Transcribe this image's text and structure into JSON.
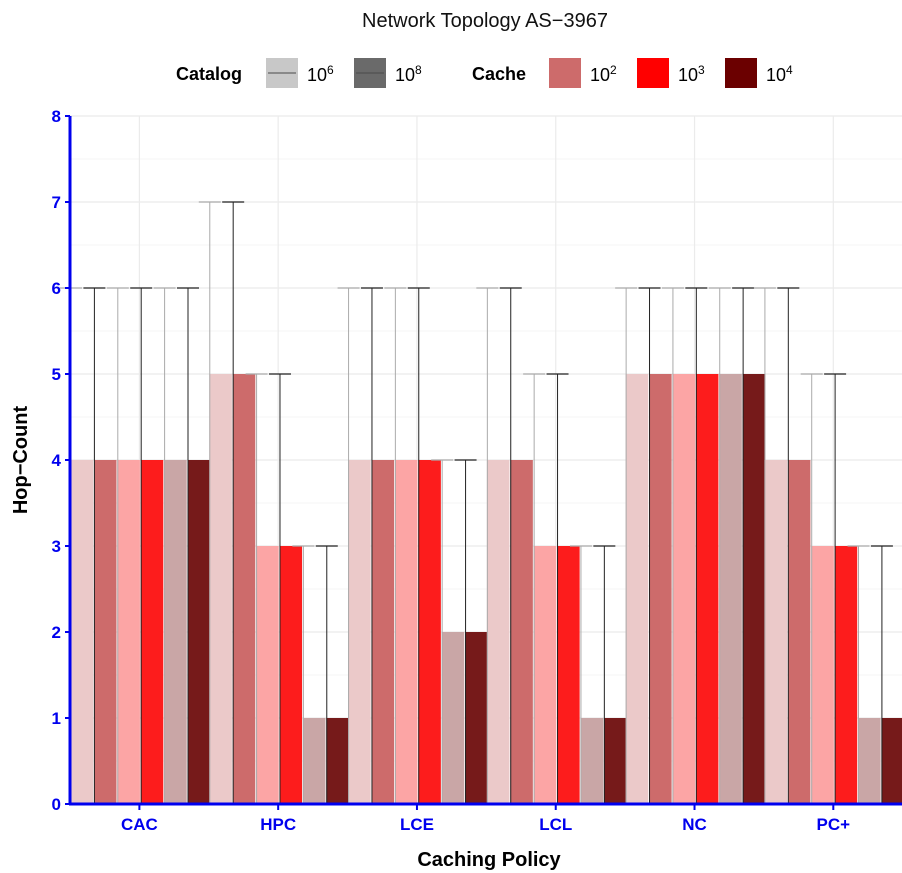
{
  "chart_data": {
    "type": "bar",
    "title": "Network Topology AS−3967",
    "xlabel": "Caching Policy",
    "ylabel": "Hop−Count",
    "ylim": [
      0,
      8
    ],
    "yticks": [
      "0",
      "1",
      "2",
      "3",
      "4",
      "5",
      "6",
      "7",
      "8"
    ],
    "grid": true,
    "legend_position": "top",
    "categories": [
      "CAC",
      "HPC",
      "LCE",
      "LCL",
      "NC",
      "PC+"
    ],
    "legend": {
      "catalog": {
        "title": "Catalog",
        "items": [
          {
            "base": "10",
            "exp": "6"
          },
          {
            "base": "10",
            "exp": "8"
          }
        ]
      },
      "cache": {
        "title": "Cache",
        "items": [
          {
            "base": "10",
            "exp": "2"
          },
          {
            "base": "10",
            "exp": "3"
          },
          {
            "base": "10",
            "exp": "4"
          }
        ]
      }
    },
    "series": [
      {
        "catalog": "10^6",
        "cache": "10^2",
        "values": [
          4,
          5,
          4,
          4,
          5,
          4
        ],
        "error_upper": [
          6,
          7,
          6,
          6,
          6,
          6
        ]
      },
      {
        "catalog": "10^8",
        "cache": "10^2",
        "values": [
          4,
          5,
          4,
          4,
          5,
          4
        ],
        "error_upper": [
          6,
          7,
          6,
          6,
          6,
          6
        ]
      },
      {
        "catalog": "10^6",
        "cache": "10^3",
        "values": [
          4,
          3,
          4,
          3,
          5,
          3
        ],
        "error_upper": [
          6,
          5,
          6,
          5,
          6,
          5
        ]
      },
      {
        "catalog": "10^8",
        "cache": "10^3",
        "values": [
          4,
          3,
          4,
          3,
          5,
          3
        ],
        "error_upper": [
          6,
          5,
          6,
          5,
          6,
          5
        ]
      },
      {
        "catalog": "10^6",
        "cache": "10^4",
        "values": [
          4,
          1,
          2,
          1,
          5,
          1
        ],
        "error_upper": [
          6,
          3,
          4,
          3,
          6,
          3
        ]
      },
      {
        "catalog": "10^8",
        "cache": "10^4",
        "values": [
          4,
          1,
          2,
          1,
          5,
          1
        ],
        "error_upper": [
          6,
          3,
          4,
          3,
          6,
          3
        ]
      }
    ],
    "colors": {
      "series": [
        "#ebc9c9",
        "#cd6b6b",
        "#fca5a5",
        "#fd1c1c",
        "#c9a6a6",
        "#761a1a"
      ],
      "legend_catalog": [
        "#c8c8c8",
        "#6a6a6a"
      ],
      "legend_cache": [
        "#cd6b6b",
        "#ff0000",
        "#6b0000"
      ],
      "axis": "#0000ee",
      "error_light": "#aaaaaa",
      "error_dark": "#222222",
      "grid": "#ebebeb"
    }
  }
}
